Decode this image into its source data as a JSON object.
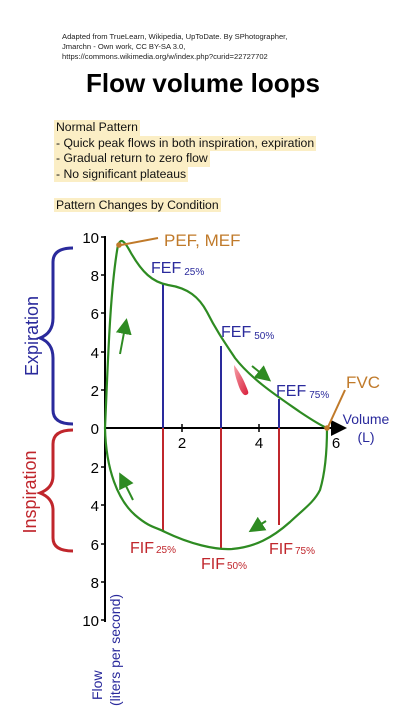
{
  "credit": {
    "line1": "Adapted from TrueLearn, Wikipedia, UpToDate. By SPhotographer,",
    "line2": "Jmarchn - Own work, CC BY-SA 3.0,",
    "line3": "https://commons.wikimedia.org/w/index.php?curid=22727702"
  },
  "title": "Flow volume loops",
  "notes": {
    "heading": "Normal Pattern",
    "items": [
      "- Quick peak flows in both inspiration, expiration",
      "- Gradual return to zero flow",
      "- No significant plateaus"
    ]
  },
  "subheading": "Pattern Changes by Condition",
  "diagram": {
    "y_ticks_expiration": [
      "10",
      "8",
      "6",
      "4",
      "2",
      "0"
    ],
    "y_ticks_inspiration": [
      "2",
      "4",
      "6",
      "8",
      "10"
    ],
    "x_ticks": [
      "2",
      "4",
      "6"
    ],
    "x_axis_label_1": "Volume",
    "x_axis_label_2": "(L)",
    "y_axis_label_1": "Flow",
    "y_axis_label_2": "(liters per second)",
    "expiration_label": "Expiration",
    "inspiration_label": "Inspiration",
    "pef_label": "PEF, MEF",
    "fvc_label": "FVC",
    "fef": [
      {
        "main": "FEF",
        "sub": "25%"
      },
      {
        "main": "FEF",
        "sub": "50%"
      },
      {
        "main": "FEF",
        "sub": "75%"
      }
    ],
    "fif": [
      {
        "main": "FIF",
        "sub": "25%"
      },
      {
        "main": "FIF",
        "sub": "50%"
      },
      {
        "main": "FIF",
        "sub": "75%"
      }
    ],
    "colors": {
      "curve": "#2e8b22",
      "expiration": "#2a2a9c",
      "inspiration": "#c0262c",
      "annotation": "#c07a2a",
      "axis": "#000000"
    }
  }
}
